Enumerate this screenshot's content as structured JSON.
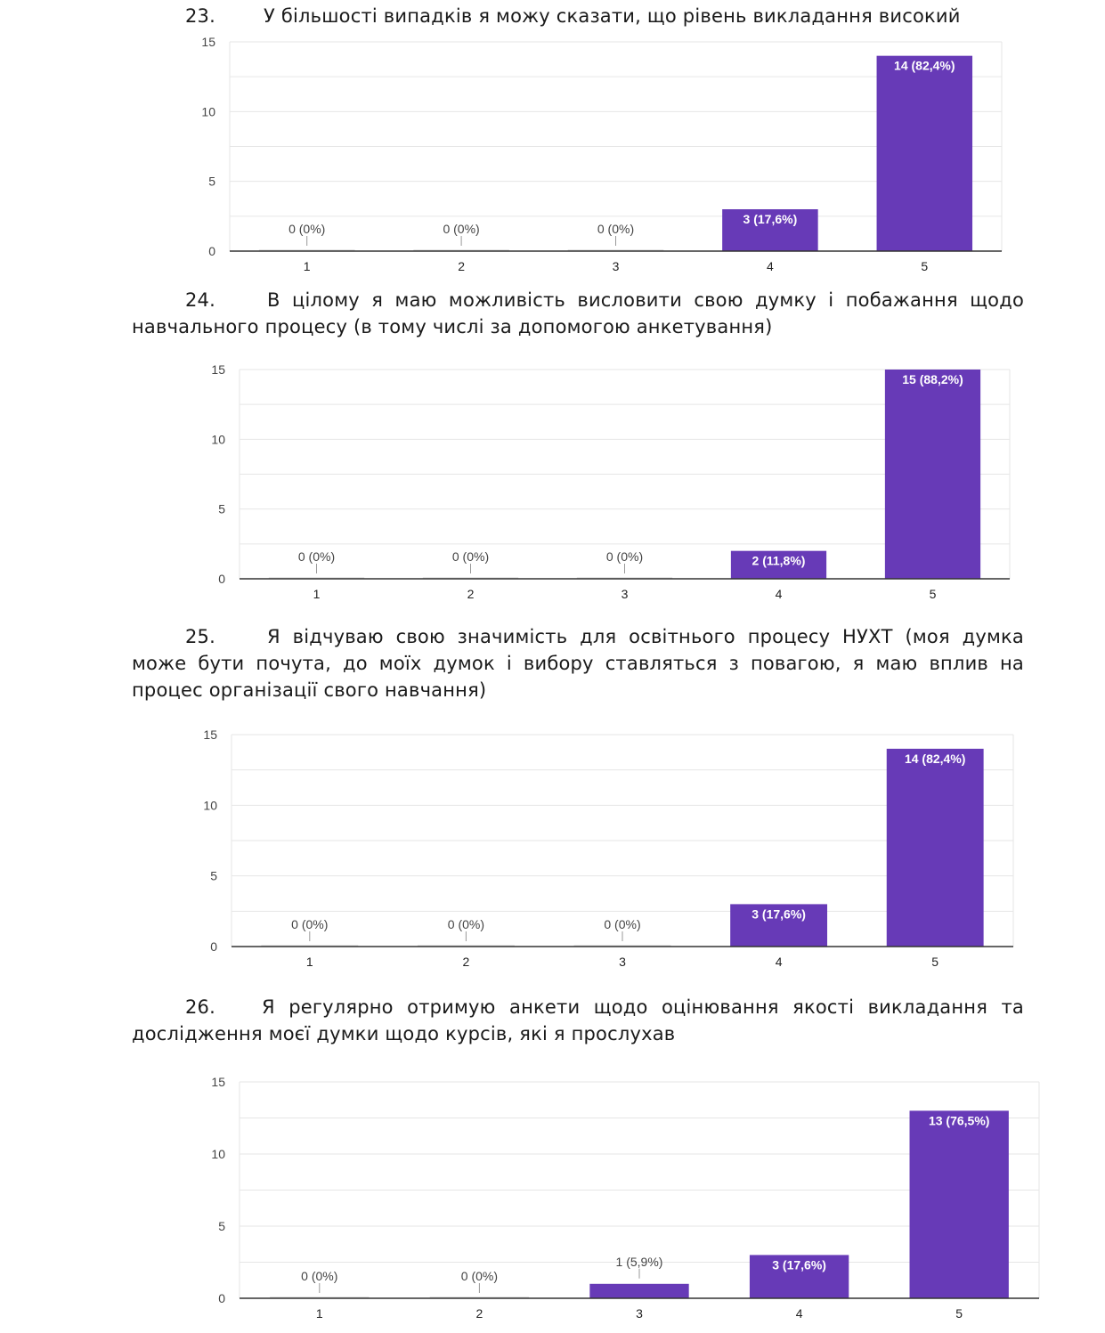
{
  "questions": [
    {
      "number": "23.",
      "text": "У більшості випадків я можу сказати, що рівень викладання високий"
    },
    {
      "number": "24.",
      "text": "В цілому я маю можливість висловити свою думку і побажання щодо навчального процесу (в тому числі за допомогою анкетування)"
    },
    {
      "number": "25.",
      "text": "Я відчуваю свою значимість для освітнього процесу НУХТ (моя думка може бути почута, до моїх думок і вибору ставляться з повагою, я маю вплив на процес організації свого навчання)"
    },
    {
      "number": "26.",
      "text": "Я регулярно отримую анкети щодо оцінювання якості викладання та дослідження моєї думки щодо курсів, які я прослухав"
    }
  ],
  "colors": {
    "bar": "#673ab7",
    "grid": "#e6e6e6",
    "axis": "#333333"
  },
  "chart_data": [
    {
      "type": "bar",
      "title": "",
      "xlabel": "",
      "ylabel": "",
      "categories": [
        "1",
        "2",
        "3",
        "4",
        "5"
      ],
      "values": [
        0,
        0,
        0,
        3,
        14
      ],
      "labels": [
        "0 (0%)",
        "0 (0%)",
        "0 (0%)",
        "3 (17,6%)",
        "14 (82,4%)"
      ],
      "ylim": [
        0,
        15
      ],
      "yticks": [
        "0",
        "5",
        "10",
        "15"
      ]
    },
    {
      "type": "bar",
      "title": "",
      "xlabel": "",
      "ylabel": "",
      "categories": [
        "1",
        "2",
        "3",
        "4",
        "5"
      ],
      "values": [
        0,
        0,
        0,
        2,
        15
      ],
      "labels": [
        "0 (0%)",
        "0 (0%)",
        "0 (0%)",
        "2 (11,8%)",
        "15 (88,2%)"
      ],
      "ylim": [
        0,
        15
      ],
      "yticks": [
        "0",
        "5",
        "10",
        "15"
      ]
    },
    {
      "type": "bar",
      "title": "",
      "xlabel": "",
      "ylabel": "",
      "categories": [
        "1",
        "2",
        "3",
        "4",
        "5"
      ],
      "values": [
        0,
        0,
        0,
        3,
        14
      ],
      "labels": [
        "0 (0%)",
        "0 (0%)",
        "0 (0%)",
        "3 (17,6%)",
        "14 (82,4%)"
      ],
      "ylim": [
        0,
        15
      ],
      "yticks": [
        "0",
        "5",
        "10",
        "15"
      ]
    },
    {
      "type": "bar",
      "title": "",
      "xlabel": "",
      "ylabel": "",
      "categories": [
        "1",
        "2",
        "3",
        "4",
        "5"
      ],
      "values": [
        0,
        0,
        1,
        3,
        13
      ],
      "labels": [
        "0 (0%)",
        "0 (0%)",
        "1 (5,9%)",
        "3 (17,6%)",
        "13 (76,5%)"
      ],
      "ylim": [
        0,
        15
      ],
      "yticks": [
        "0",
        "5",
        "10",
        "15"
      ]
    }
  ]
}
